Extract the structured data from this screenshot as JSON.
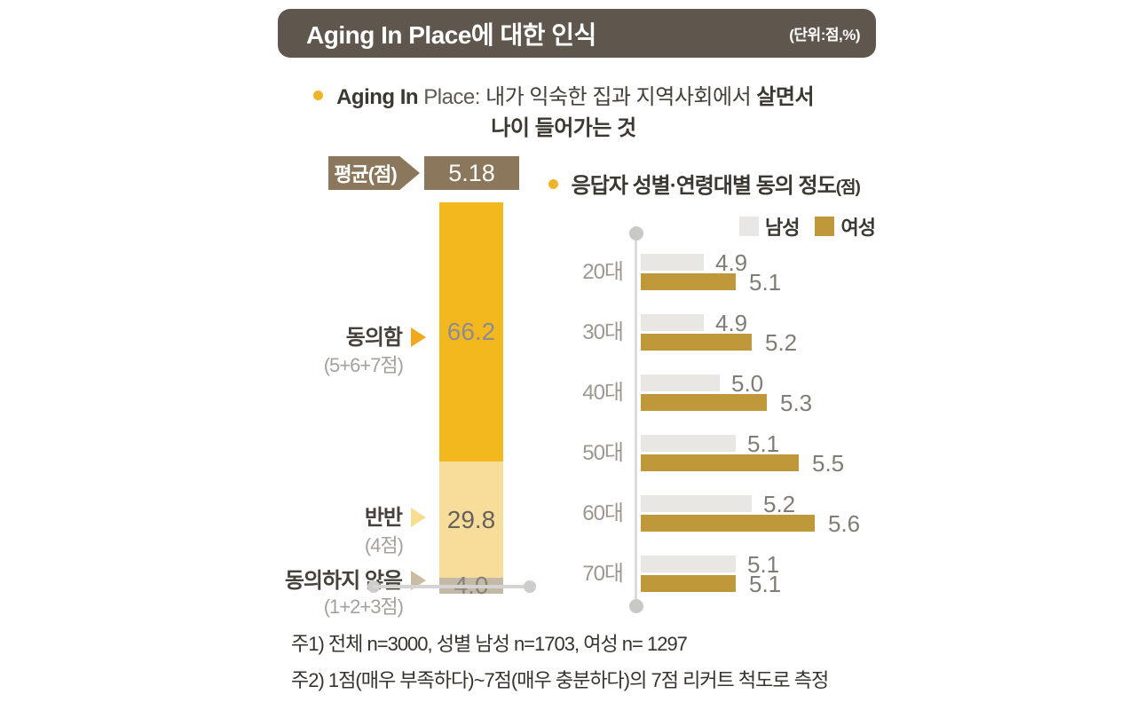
{
  "header": {
    "title": "Aging In Place에 대한 인식",
    "units": "(단위:점,%)"
  },
  "definition": {
    "en_bold": "Aging In",
    "en_rest": "Place:",
    "kr_regular": "내가 익숙한 집과 지역사회에서",
    "kr_bold": "살면서",
    "line2": "나이 들어가는 것"
  },
  "stacked": {
    "average_label": "평균(점)",
    "average_value": "5.18",
    "groups": [
      {
        "label": "동의함",
        "sublabel": "(5+6+7점)"
      },
      {
        "label": "반반",
        "sublabel": "(4점)"
      },
      {
        "label": "동의하지 않음",
        "sublabel": "(1+2+3점)"
      }
    ]
  },
  "grouped": {
    "title": "응답자 성별·연령대별 동의 정도",
    "title_suffix": "(점)"
  },
  "legend": {
    "male": "남성",
    "female": "여성"
  },
  "footnotes": [
    "주1) 전체 n=3000, 성별 남성 n=1703, 여성 n= 1297",
    "주2) 1점(매우 부족하다)~7점(매우 충분하다)의 7점 리커트 척도로 측정"
  ],
  "colors": {
    "title_bar": "#5f574e",
    "brown_box": "#8a775c",
    "bullet": "#f0b428",
    "segment_agree": "#f4b81f",
    "segment_neutral": "#f8dd9a",
    "segment_disagree": "#c3b9a6",
    "segment_value_colors": [
      "#8d8c93",
      "#63625f",
      "#87837b"
    ],
    "arrow_agree": "#f2a81d",
    "arrow_neutral": "#f7dc92",
    "arrow_disagree": "#c9bda4",
    "male_bar": "#e8e7e4",
    "female_bar": "#bf9839",
    "axis": "#dcdbd8"
  },
  "chart_data": [
    {
      "type": "bar",
      "subtype": "stacked-vertical-100pct",
      "title": "Aging In Place에 대한 인식",
      "unit": "%",
      "average_label": "평균(점)",
      "average_score": 5.18,
      "categories": [
        "동의함(5+6+7점)",
        "반반(4점)",
        "동의하지 않음(1+2+3점)"
      ],
      "values": [
        66.2,
        29.8,
        4.0
      ],
      "ylim": [
        0,
        100
      ],
      "grid": false
    },
    {
      "type": "bar",
      "subtype": "grouped-horizontal",
      "title": "응답자 성별·연령대별 동의 정도(점)",
      "unit": "점",
      "categories": [
        "20대",
        "30대",
        "40대",
        "50대",
        "60대",
        "70대"
      ],
      "series": [
        {
          "name": "남성",
          "values": [
            4.9,
            4.9,
            5.0,
            5.1,
            5.2,
            5.1
          ]
        },
        {
          "name": "여성",
          "values": [
            5.1,
            5.2,
            5.3,
            5.5,
            5.6,
            5.1
          ]
        }
      ],
      "xlim": [
        4.5,
        6.0
      ],
      "legend_position": "top-right",
      "grid": false
    }
  ]
}
